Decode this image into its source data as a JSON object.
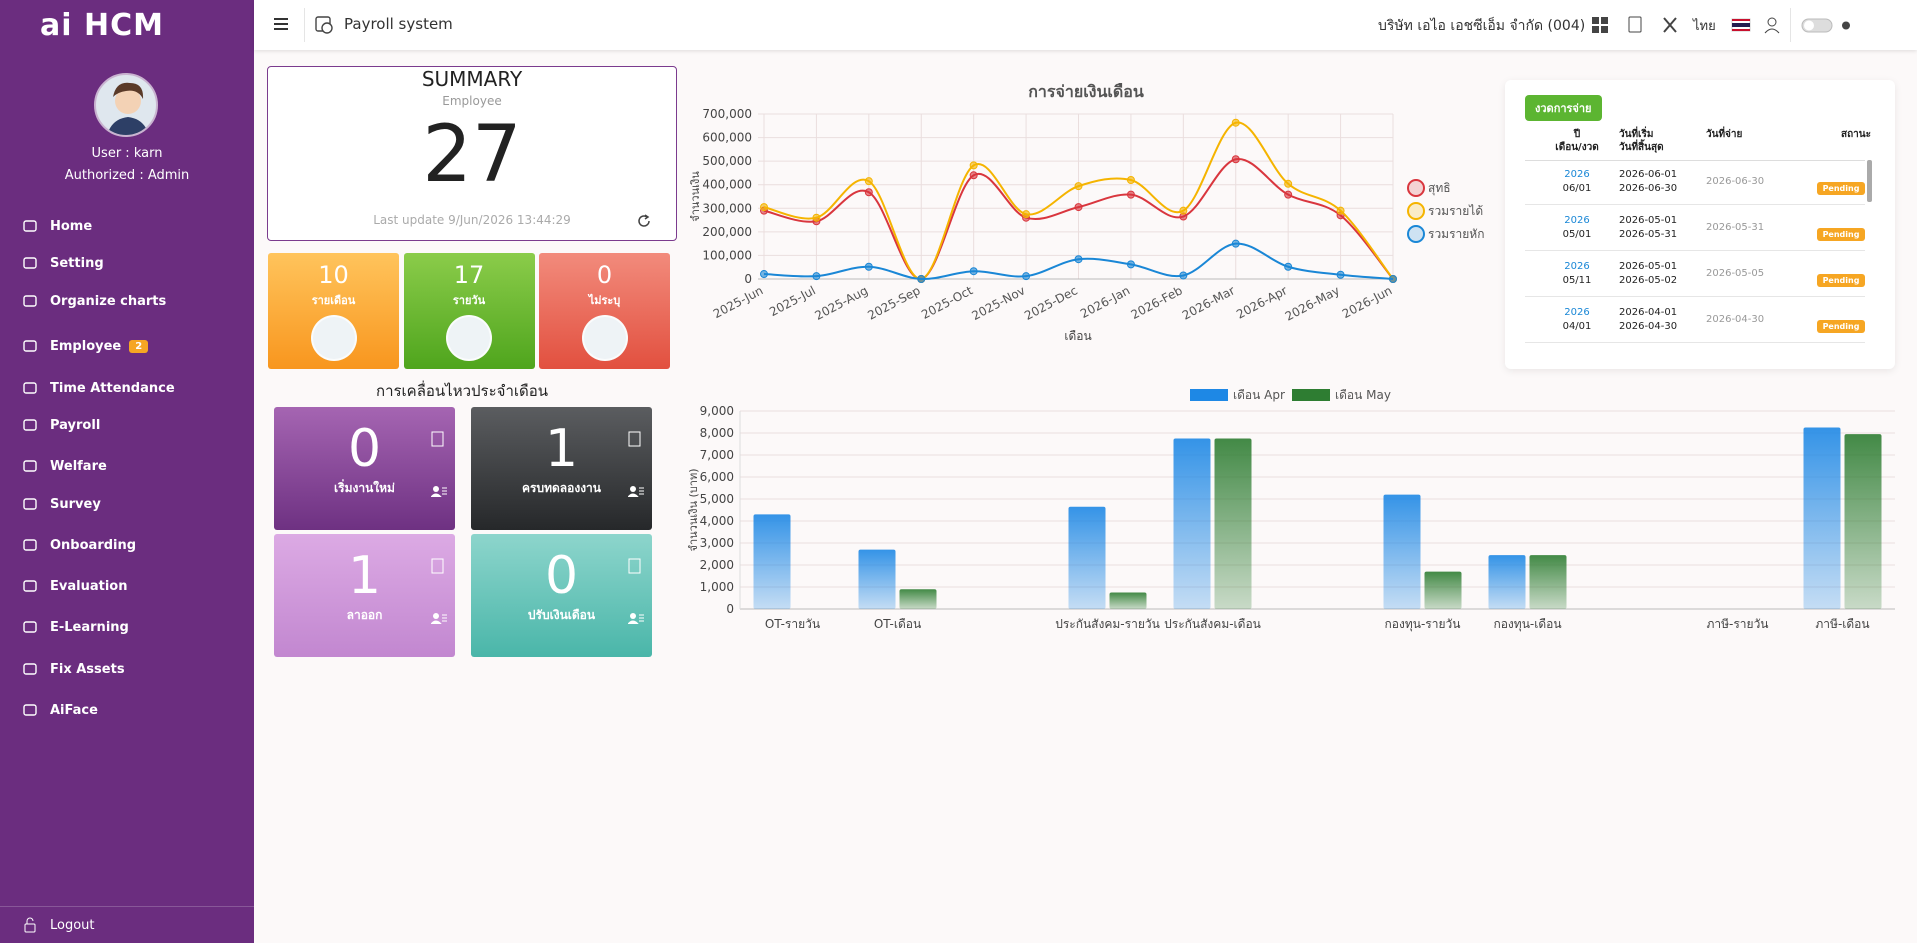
{
  "sidebar": {
    "logo": "ai HCM",
    "user": "User : karn",
    "role": "Authorized : Admin",
    "menu": [
      {
        "label": "Home"
      },
      {
        "label": "Setting"
      },
      {
        "label": "Organize charts"
      },
      {
        "label": "Employee",
        "badge": 2
      },
      {
        "label": "Time Attendance"
      },
      {
        "label": "Payroll"
      },
      {
        "label": "Welfare"
      },
      {
        "label": "Survey"
      },
      {
        "label": "Onboarding"
      },
      {
        "label": "Evaluation"
      },
      {
        "label": "E-Learning"
      },
      {
        "label": "Fix Assets"
      },
      {
        "label": "AiFace"
      }
    ],
    "logout": "Logout"
  },
  "header": {
    "title": "Payroll system",
    "company": "บริษัท เอไอ เอชซีเอ็ม จำกัด (004)",
    "language": "ไทย"
  },
  "summary": {
    "title": "SUMMARY",
    "subtitle": "Employee",
    "total": 27,
    "last_update": "Last update 9/Jun/2026 13:44:29"
  },
  "employee_types": [
    {
      "count": 10,
      "label": "รายเดือน"
    },
    {
      "count": 17,
      "label": "รายวัน"
    },
    {
      "count": 0,
      "label": "ไม่ระบุ"
    }
  ],
  "movement": {
    "title": "การเคลื่อนไหวประจำเดือน",
    "items": [
      {
        "count": 0,
        "label": "เริ่มงานใหม่"
      },
      {
        "count": 1,
        "label": "ครบทดลองงาน"
      },
      {
        "count": 1,
        "label": "ลาออก"
      },
      {
        "count": 0,
        "label": "ปรับเงินเดือน"
      }
    ]
  },
  "pay_periods": {
    "button": "งวดการจ่าย",
    "columns": [
      [
        "ปี",
        "เดือน/งวด"
      ],
      [
        "วันที่เริ่ม",
        "วันที่สิ้นสุด"
      ],
      [
        "วันที่จ่าย"
      ],
      [
        "สถานะ"
      ]
    ],
    "rows": [
      {
        "year": "2026",
        "period": "06/01",
        "start": "2026-06-01",
        "end": "2026-06-30",
        "pay_date": "2026-06-30",
        "status": "Pending"
      },
      {
        "year": "2026",
        "period": "05/01",
        "start": "2026-05-01",
        "end": "2026-05-31",
        "pay_date": "2026-05-31",
        "status": "Pending"
      },
      {
        "year": "2026",
        "period": "05/11",
        "start": "2026-05-01",
        "end": "2026-05-02",
        "pay_date": "2026-05-05",
        "status": "Pending"
      },
      {
        "year": "2026",
        "period": "04/01",
        "start": "2026-04-01",
        "end": "2026-04-30",
        "pay_date": "2026-04-30",
        "status": "Pending"
      }
    ]
  },
  "chart_data": [
    {
      "type": "line",
      "title": "การจ่ายเงินเดือน",
      "x_label": "เดือน",
      "y_label": "จำนวนเงิน",
      "categories": [
        "2025-Jun",
        "2025-Jul",
        "2025-Aug",
        "2025-Sep",
        "2025-Oct",
        "2025-Nov",
        "2025-Dec",
        "2026-Jan",
        "2026-Feb",
        "2026-Mar",
        "2026-Apr",
        "2026-May",
        "2026-Jun"
      ],
      "series": [
        {
          "name": "สุทธิ",
          "color": "#d9363e",
          "values": [
            290000,
            245000,
            368000,
            0,
            440000,
            260000,
            305000,
            358000,
            265000,
            508000,
            358000,
            270000,
            0
          ]
        },
        {
          "name": "รวมรายได้",
          "color": "#f5b400",
          "values": [
            305000,
            260000,
            415000,
            0,
            482000,
            275000,
            394000,
            420000,
            290000,
            663000,
            404000,
            290000,
            0
          ]
        },
        {
          "name": "รวมรายหัก",
          "color": "#1a87d6",
          "values": [
            21000,
            12000,
            52000,
            0,
            33000,
            12000,
            84000,
            62000,
            15000,
            150000,
            52000,
            18000,
            0
          ]
        }
      ],
      "ylim": [
        0,
        700000
      ],
      "yticks": [
        0,
        {
          "value": 100000,
          "label": "100,000"
        },
        {
          "value": 200000,
          "label": "200,000"
        },
        {
          "value": 300000,
          "label": "300,000"
        },
        {
          "value": 400000,
          "label": "400,000"
        },
        {
          "value": 500000,
          "label": "500,000"
        },
        {
          "value": 600000,
          "label": "600,000"
        },
        {
          "value": 700000,
          "label": "700,000"
        }
      ],
      "grid": true,
      "legend": "right"
    },
    {
      "type": "bar",
      "y_label": "จำนวนเงิน (บาท)",
      "categories": [
        "OT-รายวัน",
        "OT-เดือน",
        null,
        "ประกันสังคม-รายวัน",
        "ประกันสังคม-เดือน",
        null,
        "กองทุน-รายวัน",
        "กองทุน-เดือน",
        null,
        "ภาษี-รายวัน",
        "ภาษี-เดือน"
      ],
      "series": [
        {
          "name": "เดือน Apr",
          "color": "#1e88e5",
          "values": [
            4300,
            2700,
            null,
            4650,
            7750,
            null,
            5200,
            2450,
            null,
            0,
            8250
          ]
        },
        {
          "name": "เดือน May",
          "color": "#2e7d32",
          "values": [
            0,
            900,
            null,
            750,
            7750,
            null,
            1700,
            2450,
            null,
            0,
            7950
          ]
        }
      ],
      "ylim": [
        0,
        9000
      ],
      "yticks": [
        0,
        {
          "value": 1000,
          "label": "1,000"
        },
        {
          "value": 2000,
          "label": "2,000"
        },
        {
          "value": 3000,
          "label": "3,000"
        },
        {
          "value": 4000,
          "label": "4,000"
        },
        {
          "value": 5000,
          "label": "5,000"
        },
        {
          "value": 6000,
          "label": "6,000"
        },
        {
          "value": 7000,
          "label": "7,000"
        },
        {
          "value": 8000,
          "label": "8,000"
        },
        {
          "value": 9000,
          "label": "9,000"
        }
      ],
      "grid": true,
      "legend": "top"
    }
  ]
}
